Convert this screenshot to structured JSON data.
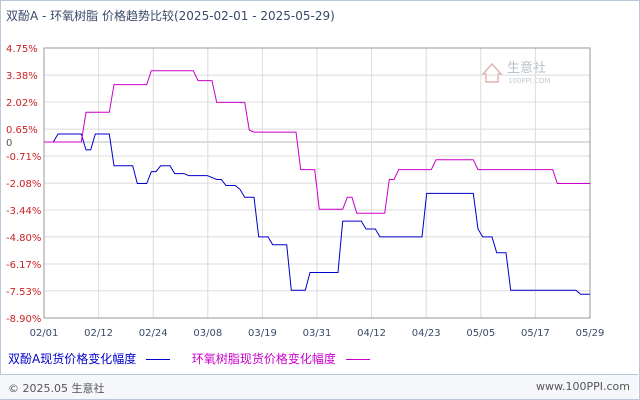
{
  "title": "双酚A - 环氧树脂 价格趋势比较(2025-02-01 - 2025-05-29)",
  "watermark": {
    "name": "生意社",
    "url": "100PPI.COM"
  },
  "legend": [
    {
      "label": "双酚A现货价格变化幅度",
      "color": "#0000cc"
    },
    {
      "label": "环氧树脂现货价格变化幅度",
      "color": "#cc00cc"
    }
  ],
  "footer": {
    "copyright": "© 2025.05 生意社",
    "site": "www.100PPI.com"
  },
  "chart_data": {
    "type": "line",
    "title": "双酚A - 环氧树脂 价格趋势比较(2025-02-01 - 2025-05-29)",
    "y_ticks": [
      "4.75%",
      "3.38%",
      "2.02%",
      "0.65%",
      "0",
      "-0.71%",
      "-2.08%",
      "-3.44%",
      "-4.80%",
      "-6.17%",
      "-7.53%",
      "-8.90%"
    ],
    "y_tick_values": [
      4.75,
      3.38,
      2.02,
      0.65,
      0,
      -0.71,
      -2.08,
      -3.44,
      -4.8,
      -6.17,
      -7.53,
      -8.9
    ],
    "ylim": [
      -8.9,
      4.75
    ],
    "x_ticks": [
      "02/01",
      "02/12",
      "02/24",
      "03/08",
      "03/19",
      "03/31",
      "04/12",
      "04/23",
      "05/05",
      "05/17",
      "05/29"
    ],
    "x_range": [
      "2025-02-01",
      "2025-05-29"
    ],
    "grid": true,
    "legend_position": "bottom",
    "series": [
      {
        "name": "双酚A现货价格变化幅度",
        "color": "#0000cc",
        "points": [
          [
            "2025-02-01",
            0
          ],
          [
            "2025-02-03",
            0
          ],
          [
            "2025-02-04",
            0.4
          ],
          [
            "2025-02-09",
            0.4
          ],
          [
            "2025-02-10",
            -0.4
          ],
          [
            "2025-02-11",
            -0.4
          ],
          [
            "2025-02-12",
            0.4
          ],
          [
            "2025-02-15",
            0.4
          ],
          [
            "2025-02-16",
            -1.2
          ],
          [
            "2025-02-20",
            -1.2
          ],
          [
            "2025-02-21",
            -2.1
          ],
          [
            "2025-02-23",
            -2.1
          ],
          [
            "2025-02-24",
            -1.5
          ],
          [
            "2025-02-25",
            -1.5
          ],
          [
            "2025-02-26",
            -1.2
          ],
          [
            "2025-02-28",
            -1.2
          ],
          [
            "2025-03-01",
            -1.6
          ],
          [
            "2025-03-03",
            -1.6
          ],
          [
            "2025-03-04",
            -1.7
          ],
          [
            "2025-03-08",
            -1.7
          ],
          [
            "2025-03-10",
            -1.9
          ],
          [
            "2025-03-11",
            -1.9
          ],
          [
            "2025-03-12",
            -2.2
          ],
          [
            "2025-03-14",
            -2.2
          ],
          [
            "2025-03-15",
            -2.4
          ],
          [
            "2025-03-16",
            -2.8
          ],
          [
            "2025-03-18",
            -2.8
          ],
          [
            "2025-03-19",
            -4.8
          ],
          [
            "2025-03-21",
            -4.8
          ],
          [
            "2025-03-22",
            -5.2
          ],
          [
            "2025-03-25",
            -5.2
          ],
          [
            "2025-03-26",
            -7.5
          ],
          [
            "2025-03-29",
            -7.5
          ],
          [
            "2025-03-30",
            -6.6
          ],
          [
            "2025-04-05",
            -6.6
          ],
          [
            "2025-04-06",
            -4.0
          ],
          [
            "2025-04-10",
            -4.0
          ],
          [
            "2025-04-11",
            -4.4
          ],
          [
            "2025-04-13",
            -4.4
          ],
          [
            "2025-04-14",
            -4.8
          ],
          [
            "2025-04-23",
            -4.8
          ],
          [
            "2025-04-24",
            -2.6
          ],
          [
            "2025-05-04",
            -2.6
          ],
          [
            "2025-05-05",
            -4.4
          ],
          [
            "2025-05-06",
            -4.8
          ],
          [
            "2025-05-08",
            -4.8
          ],
          [
            "2025-05-09",
            -5.6
          ],
          [
            "2025-05-11",
            -5.6
          ],
          [
            "2025-05-12",
            -7.5
          ],
          [
            "2025-05-26",
            -7.5
          ],
          [
            "2025-05-27",
            -7.7
          ],
          [
            "2025-05-29",
            -7.7
          ]
        ]
      },
      {
        "name": "环氧树脂现货价格变化幅度",
        "color": "#cc00cc",
        "points": [
          [
            "2025-02-01",
            0
          ],
          [
            "2025-02-09",
            0
          ],
          [
            "2025-02-10",
            1.5
          ],
          [
            "2025-02-15",
            1.5
          ],
          [
            "2025-02-16",
            2.9
          ],
          [
            "2025-02-23",
            2.9
          ],
          [
            "2025-02-24",
            3.6
          ],
          [
            "2025-03-05",
            3.6
          ],
          [
            "2025-03-06",
            3.1
          ],
          [
            "2025-03-09",
            3.1
          ],
          [
            "2025-03-10",
            2.0
          ],
          [
            "2025-03-16",
            2.0
          ],
          [
            "2025-03-17",
            0.6
          ],
          [
            "2025-03-18",
            0.5
          ],
          [
            "2025-03-27",
            0.5
          ],
          [
            "2025-03-28",
            -1.4
          ],
          [
            "2025-03-31",
            -1.4
          ],
          [
            "2025-04-01",
            -3.4
          ],
          [
            "2025-04-06",
            -3.4
          ],
          [
            "2025-04-07",
            -2.8
          ],
          [
            "2025-04-08",
            -2.8
          ],
          [
            "2025-04-09",
            -3.6
          ],
          [
            "2025-04-15",
            -3.6
          ],
          [
            "2025-04-16",
            -1.9
          ],
          [
            "2025-04-17",
            -1.9
          ],
          [
            "2025-04-18",
            -1.4
          ],
          [
            "2025-04-25",
            -1.4
          ],
          [
            "2025-04-26",
            -0.9
          ],
          [
            "2025-05-04",
            -0.9
          ],
          [
            "2025-05-05",
            -1.4
          ],
          [
            "2025-05-21",
            -1.4
          ],
          [
            "2025-05-22",
            -2.1
          ],
          [
            "2025-05-29",
            -2.1
          ]
        ]
      }
    ]
  }
}
